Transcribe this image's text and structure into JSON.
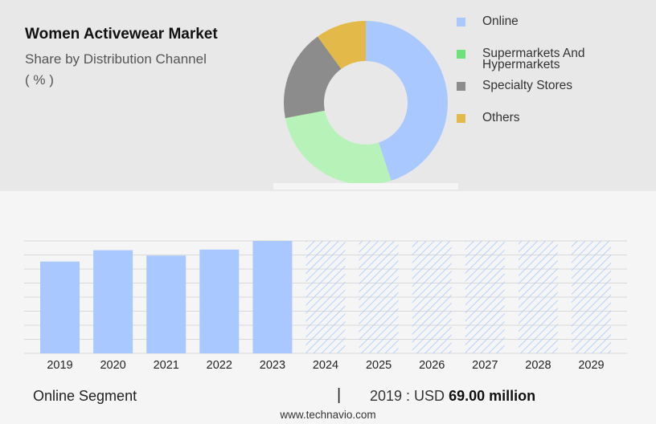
{
  "header": {
    "title": "Women Activewear Market",
    "subtitle": "Share by Distribution Channel",
    "unit": "( % )"
  },
  "colors": {
    "online": "#a8c8ff",
    "supermarkets": "#b7f3b9",
    "specialty": "#8c8c8c",
    "others": "#e3b94a",
    "legend_supermarkets": "#6ee07c",
    "bar_actual": "#a8c8ff",
    "bar_forecast_hatch": "#a8c8ff"
  },
  "chart_data": [
    {
      "type": "pie",
      "title": "",
      "categories": [
        "Online",
        "Supermarkets And Hypermarkets",
        "Specialty Stores",
        "Others"
      ],
      "values": [
        45,
        27,
        18,
        10
      ],
      "legend_position": "right"
    },
    {
      "type": "bar",
      "title": "",
      "categories": [
        "2019",
        "2020",
        "2021",
        "2022",
        "2023",
        "2024",
        "2025",
        "2026",
        "2027",
        "2028",
        "2029"
      ],
      "values": [
        69.0,
        77.5,
        73.5,
        78.0,
        84.5,
        null,
        null,
        null,
        null,
        null,
        null
      ],
      "forecast": [
        false,
        false,
        false,
        false,
        false,
        true,
        true,
        true,
        true,
        true,
        true
      ],
      "ylim": [
        0,
        84.5
      ],
      "grid": true,
      "xlabel": "",
      "ylabel": ""
    }
  ],
  "footer": {
    "segment_label": "Online Segment",
    "divider": "|",
    "year_prefix": "2019 : USD",
    "value": "69.00 million",
    "watermark": "www.technavio.com"
  }
}
